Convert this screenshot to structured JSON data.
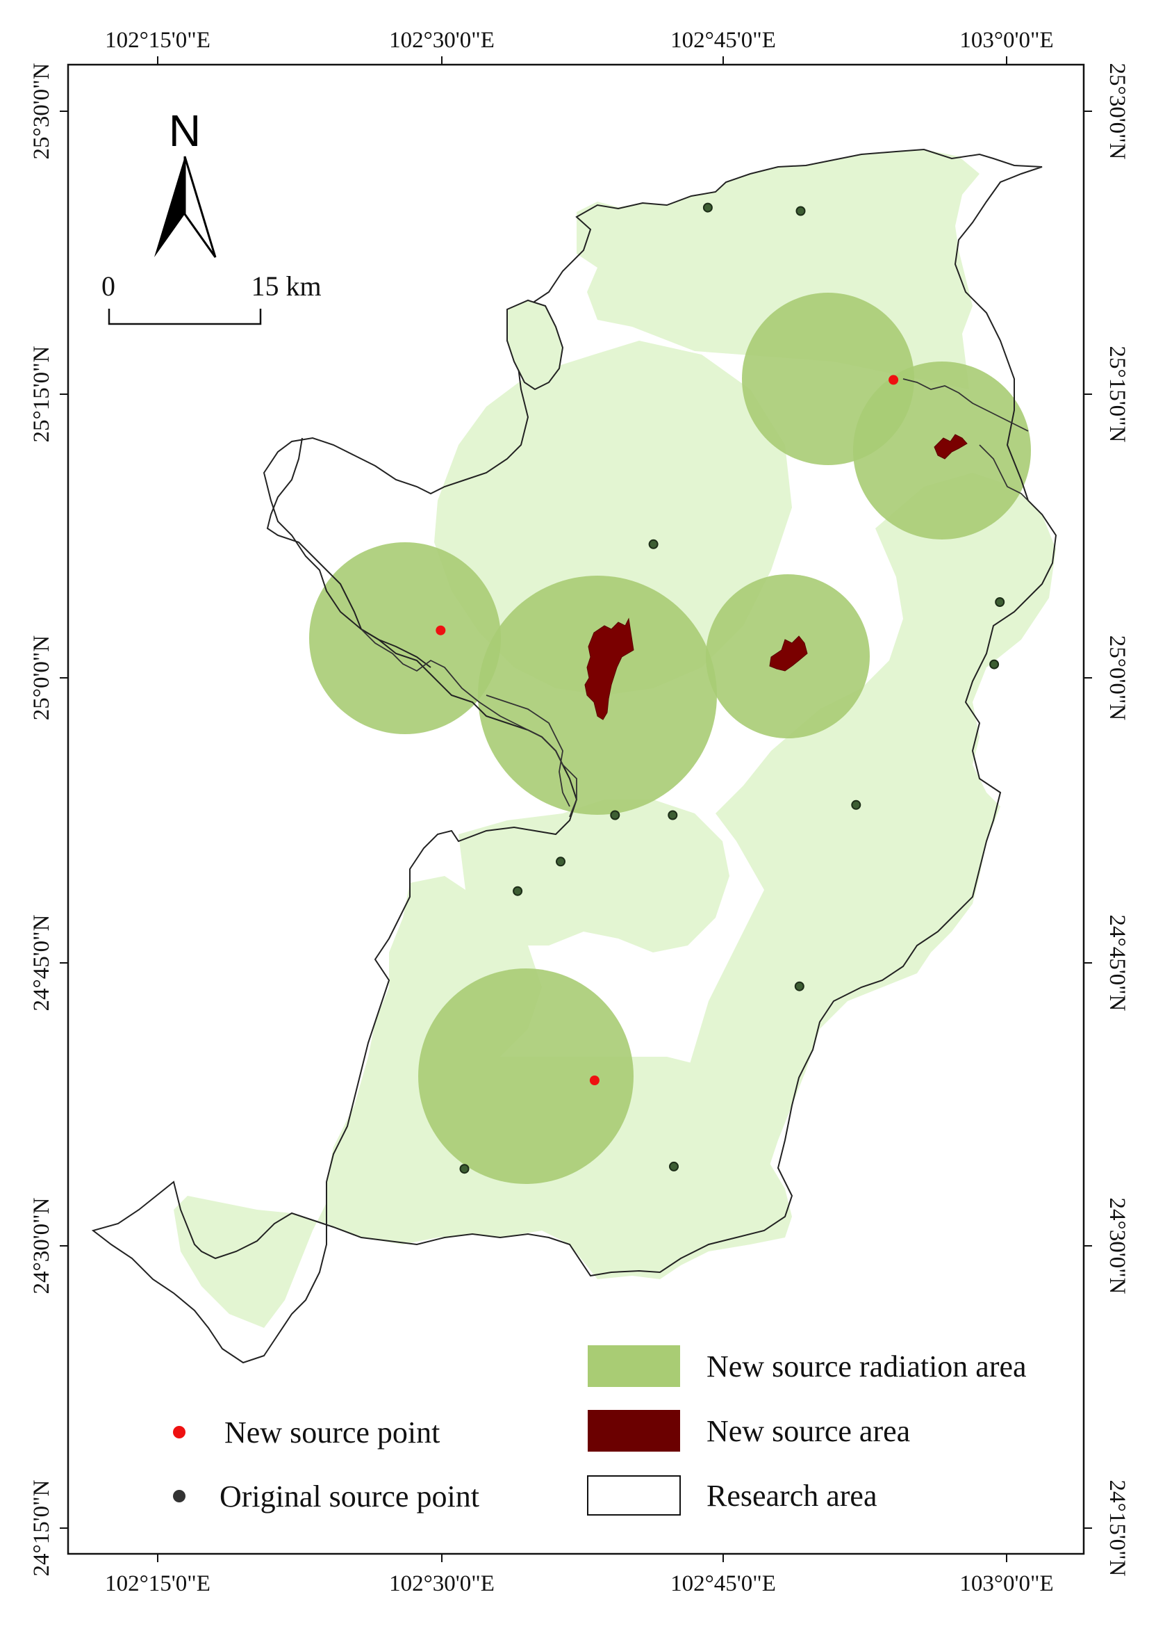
{
  "map": {
    "graticule": {
      "top_labels": [
        "102°15'0\"E",
        "102°30'0\"E",
        "102°45'0\"E",
        "103°0'0\"E"
      ],
      "bottom_labels": [
        "102°15'0\"E",
        "102°30'0\"E",
        "102°45'0\"E",
        "103°0'0\"E"
      ],
      "left_labels": [
        "25°30'0\"N",
        "25°15'0\"N",
        "25°0'0\"N",
        "24°45'0\"N",
        "24°30'0\"N",
        "24°15'0\"N"
      ],
      "right_labels": [
        "25°30'0\"N",
        "25°15'0\"N",
        "25°0'0\"N",
        "24°45'0\"N",
        "24°30'0\"N",
        "24°15'0\"N"
      ]
    },
    "north_arrow": {
      "label": "N",
      "icon": "north-arrow-icon"
    },
    "scale_bar": {
      "start_label": "0",
      "end_label": "15 km"
    },
    "colors": {
      "original_radiation": "#e3f5d2",
      "new_radiation": "#a9cc74",
      "new_source_area": "#7a0000",
      "new_source_point": "#ee1111",
      "original_source_point": "#3d5e33",
      "boundary": "#222222"
    },
    "new_source_points": [
      {
        "lon": 102.5,
        "lat": 25.042
      },
      {
        "lon": 102.636,
        "lat": 24.645
      },
      {
        "lon": 102.9,
        "lat": 25.263
      }
    ],
    "new_source_areas": [
      {
        "lon": 102.768,
        "lat": 25.017
      },
      {
        "lon": 102.97,
        "lat": 25.205
      },
      {
        "lon": 102.647,
        "lat": 24.99
      }
    ],
    "original_source_points": [
      {
        "lon": 102.736,
        "lat": 25.415
      },
      {
        "lon": 102.818,
        "lat": 25.412
      },
      {
        "lon": 102.688,
        "lat": 25.118
      },
      {
        "lon": 102.994,
        "lat": 25.067
      },
      {
        "lon": 102.989,
        "lat": 25.012
      },
      {
        "lon": 102.654,
        "lat": 24.879
      },
      {
        "lon": 102.705,
        "lat": 24.879
      },
      {
        "lon": 102.867,
        "lat": 24.888
      },
      {
        "lon": 102.606,
        "lat": 24.838
      },
      {
        "lon": 102.568,
        "lat": 24.812
      },
      {
        "lon": 102.817,
        "lat": 24.728
      },
      {
        "lon": 102.706,
        "lat": 24.569
      },
      {
        "lon": 102.521,
        "lat": 24.567
      }
    ]
  },
  "legend": {
    "items": [
      {
        "key": "new-source-radiation-area",
        "label": "New source radiation area"
      },
      {
        "key": "new-source-area",
        "label": "New source  area"
      },
      {
        "key": "research-area",
        "label": "Research area"
      },
      {
        "key": "new-source-point",
        "label": "New  source point"
      },
      {
        "key": "original-source-point",
        "label": "Original  source point"
      }
    ]
  }
}
